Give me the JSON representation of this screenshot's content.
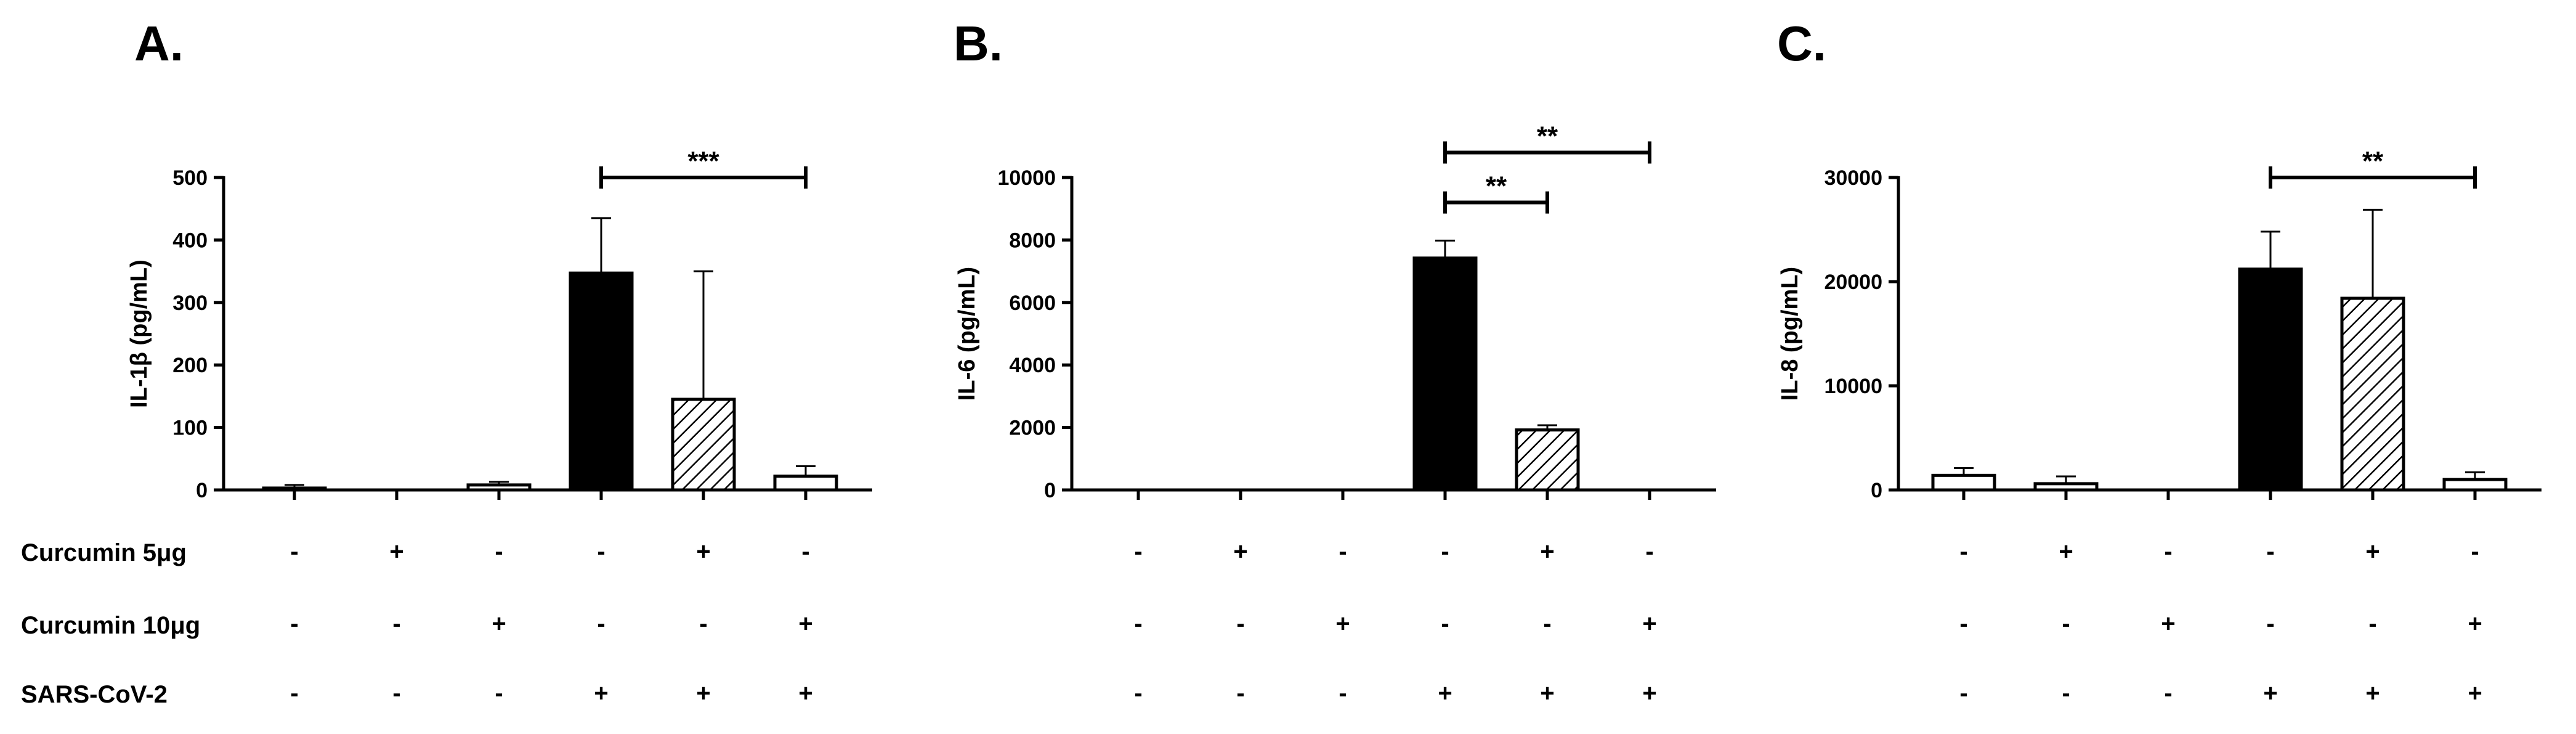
{
  "chart_data": [
    {
      "type": "bar",
      "panel": "A.",
      "ylabel": "IL-1β (pg/mL)",
      "ylim": [
        0,
        500
      ],
      "yticks": [
        0,
        100,
        200,
        300,
        400,
        500
      ],
      "values": [
        3,
        0,
        8,
        347,
        145,
        22
      ],
      "errors": [
        5,
        0,
        5,
        88,
        205,
        16
      ],
      "styles": [
        "open",
        "open",
        "open",
        "solid",
        "hatched",
        "open"
      ],
      "significance": [
        {
          "from": 3,
          "to": 5,
          "label": "***",
          "y": 500
        }
      ]
    },
    {
      "type": "bar",
      "panel": "B.",
      "ylabel": "IL-6 (pg/mL)",
      "ylim": [
        0,
        10000
      ],
      "yticks": [
        0,
        2000,
        4000,
        6000,
        8000,
        10000
      ],
      "values": [
        0,
        0,
        0,
        7420,
        1920,
        0
      ],
      "errors": [
        0,
        0,
        0,
        560,
        150,
        0
      ],
      "styles": [
        "open",
        "open",
        "open",
        "solid",
        "hatched",
        "open"
      ],
      "significance": [
        {
          "from": 3,
          "to": 5,
          "label": "**",
          "y": 10800
        },
        {
          "from": 3,
          "to": 4,
          "label": "**",
          "y": 9200
        }
      ]
    },
    {
      "type": "bar",
      "panel": "C.",
      "ylabel": "IL-8 (pg/mL)",
      "ylim": [
        0,
        30000
      ],
      "yticks": [
        0,
        10000,
        20000,
        30000
      ],
      "values": [
        1400,
        600,
        0,
        21200,
        18400,
        1000
      ],
      "errors": [
        700,
        700,
        0,
        3600,
        8500,
        700
      ],
      "styles": [
        "open",
        "open",
        "open",
        "solid",
        "hatched",
        "open"
      ],
      "significance": [
        {
          "from": 3,
          "to": 5,
          "label": "**",
          "y": 30000
        }
      ]
    }
  ],
  "conditions": {
    "rows": [
      {
        "label": "Curcumin 5μg",
        "signs": [
          "-",
          "+",
          "-",
          "-",
          "+",
          "-"
        ]
      },
      {
        "label": "Curcumin 10μg",
        "signs": [
          "-",
          "-",
          "+",
          "-",
          "-",
          "+"
        ]
      },
      {
        "label": "SARS-CoV-2",
        "signs": [
          "-",
          "-",
          "-",
          "+",
          "+",
          "+"
        ]
      }
    ]
  }
}
